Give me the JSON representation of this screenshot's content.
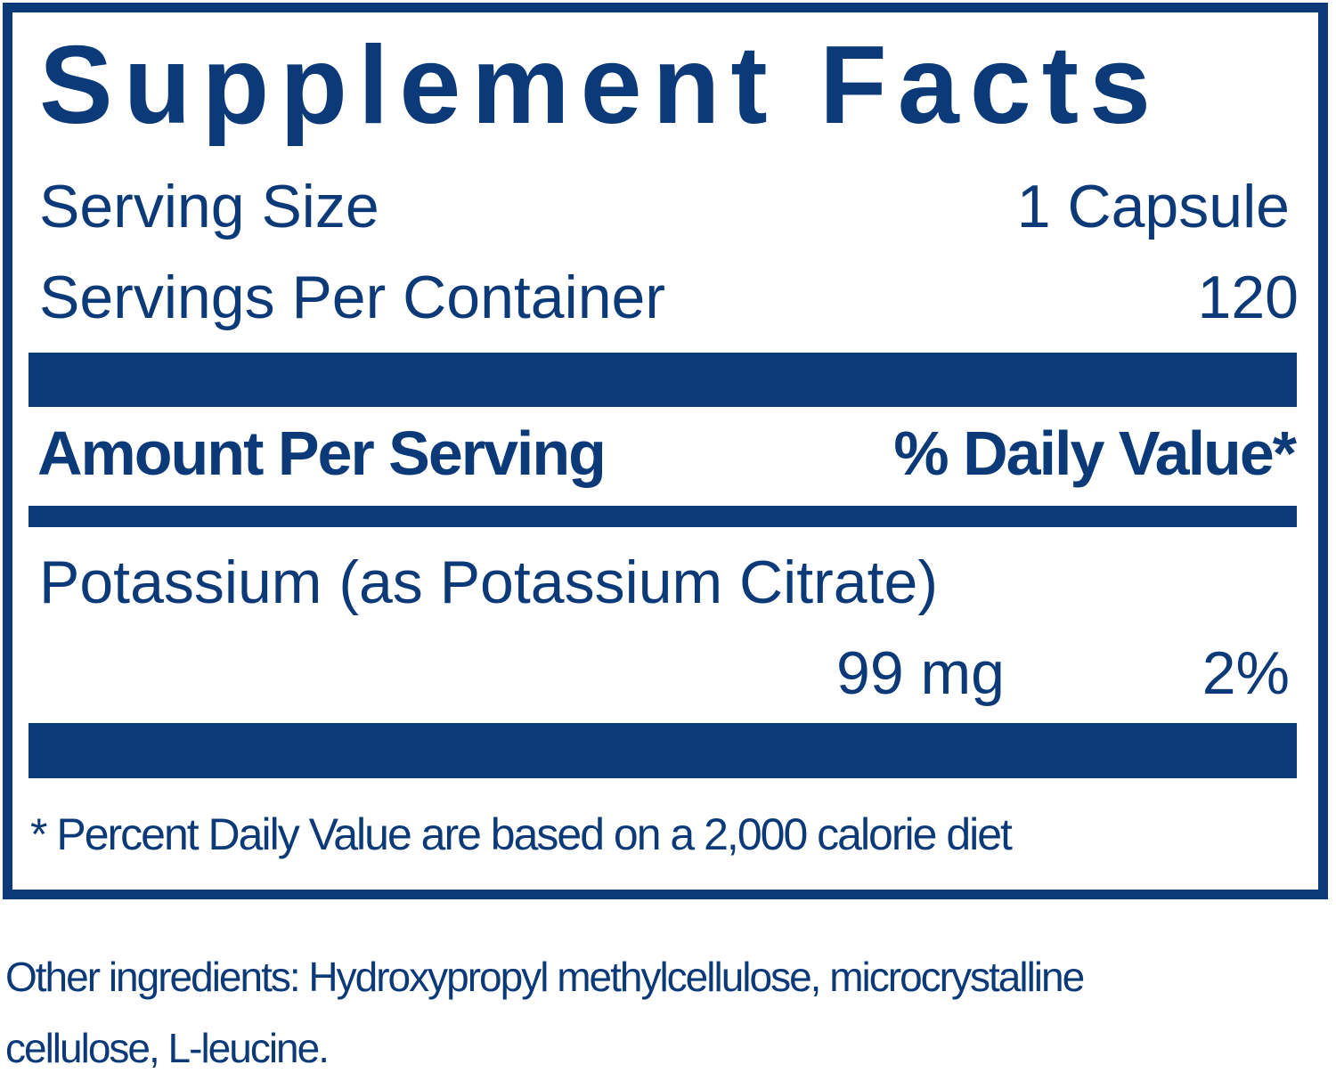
{
  "title": "Supplement Facts",
  "serving_size": {
    "label": "Serving Size",
    "value": "1 Capsule"
  },
  "servings_per_container": {
    "label": "Servings Per Container",
    "value": "120"
  },
  "header": {
    "amount_label": "Amount Per Serving",
    "dv_label": "% Daily Value*"
  },
  "nutrients": [
    {
      "name": "Potassium (as Potassium Citrate)",
      "amount": "99 mg",
      "dv": "2%"
    }
  ],
  "footnote": "* Percent Daily Value are based on a 2,000 calorie diet",
  "other_ingredients": {
    "line1": "Other ingredients: Hydroxypropyl methylcellulose, microcrystalline",
    "line2": "cellulose, L-leucine."
  },
  "colors": {
    "text": "#0c3a78",
    "background": "#ffffff"
  }
}
